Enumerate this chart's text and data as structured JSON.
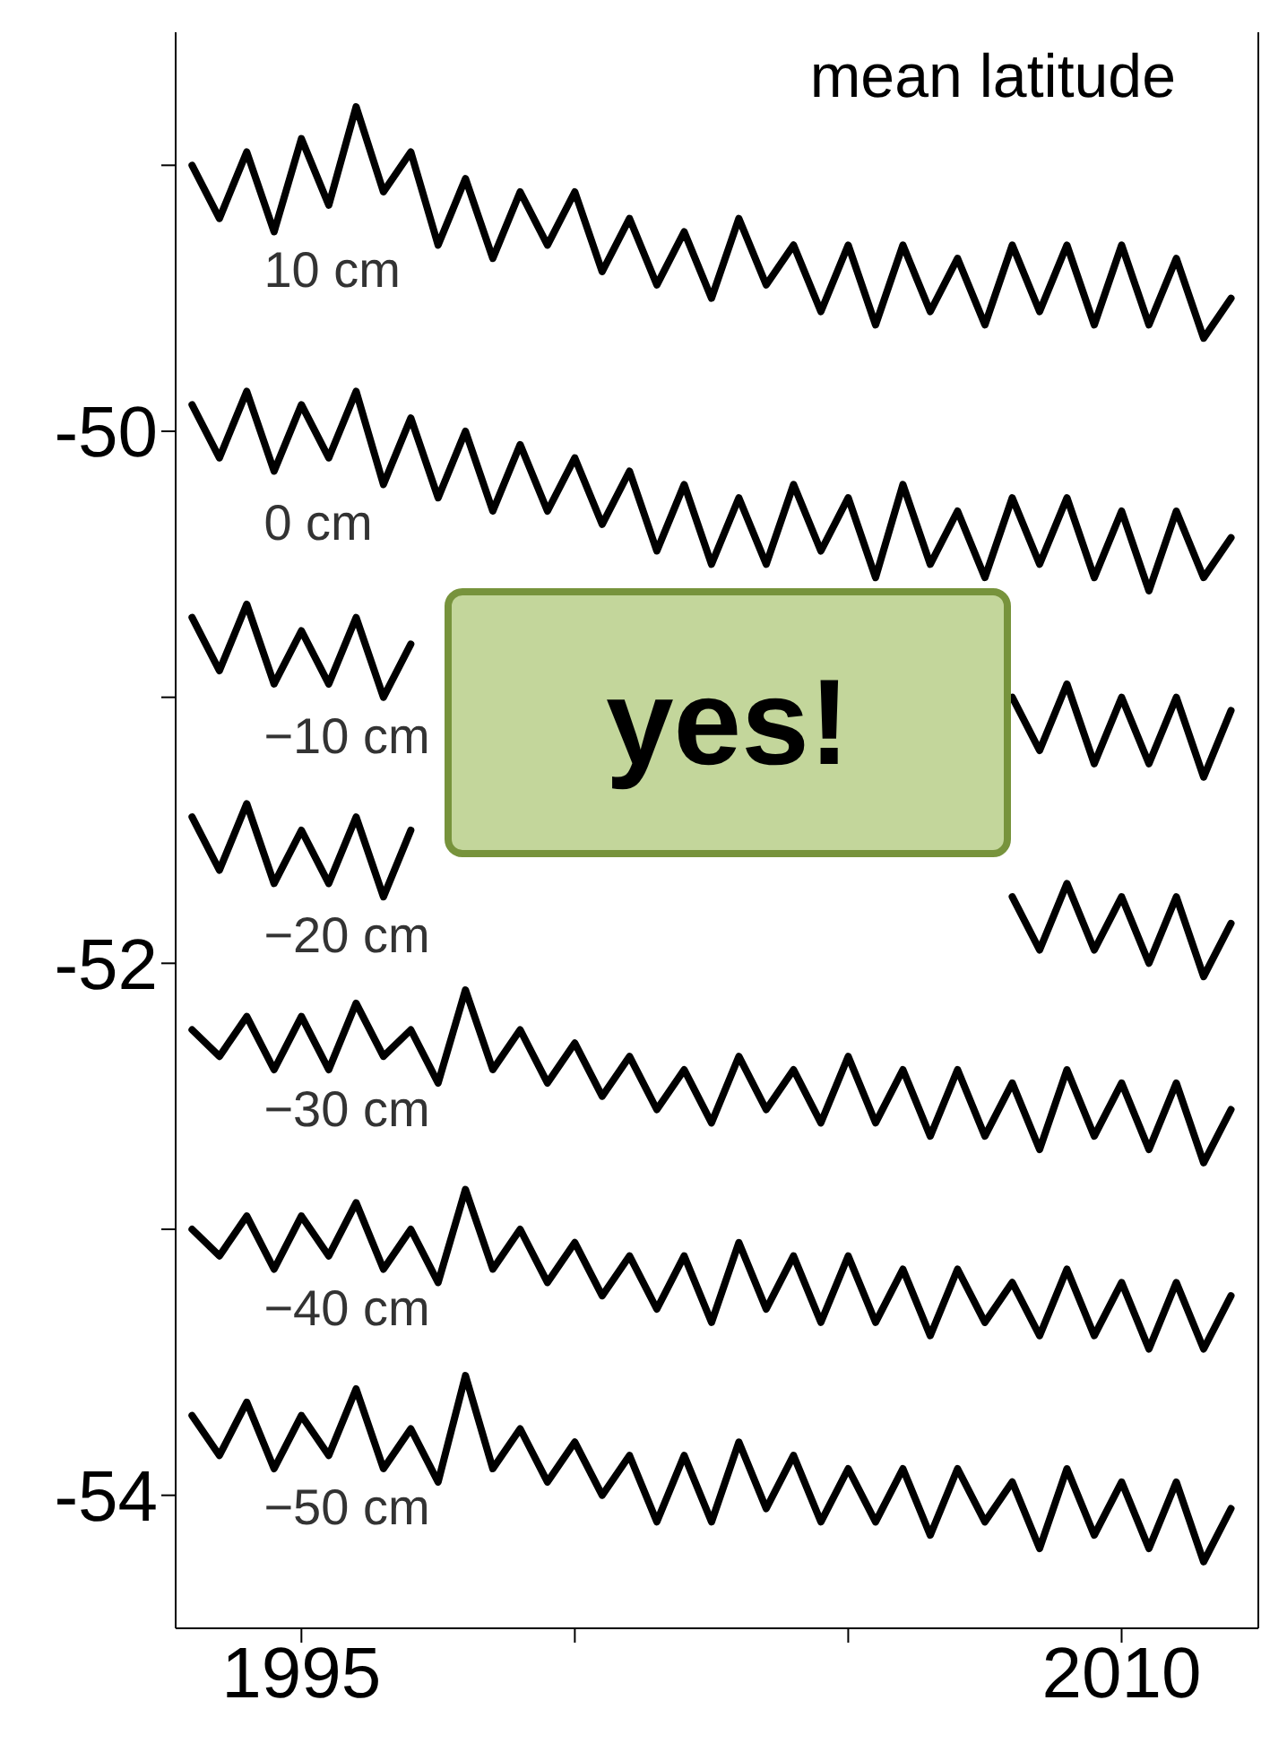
{
  "chart_data": {
    "type": "line",
    "title": "mean latitude",
    "annotations": [
      "yes!"
    ],
    "x": [
      1993,
      1993.5,
      1994,
      1994.5,
      1995,
      1995.5,
      1996,
      1996.5,
      1997,
      1997.5,
      1998,
      1998.5,
      1999,
      1999.5,
      2000,
      2000.5,
      2001,
      2001.5,
      2002,
      2002.5,
      2003,
      2003.5,
      2004,
      2004.5,
      2005,
      2005.5,
      2006,
      2006.5,
      2007,
      2007.5,
      2008,
      2008.5,
      2009,
      2009.5,
      2010,
      2010.5,
      2011,
      2011.5,
      2012
    ],
    "series": [
      {
        "name": "10 cm",
        "color": "#000000",
        "values": [
          -49.0,
          -49.2,
          -48.95,
          -49.25,
          -48.9,
          -49.15,
          -48.78,
          -49.1,
          -48.95,
          -49.3,
          -49.05,
          -49.35,
          -49.1,
          -49.3,
          -49.1,
          -49.4,
          -49.2,
          -49.45,
          -49.25,
          -49.5,
          -49.2,
          -49.45,
          -49.3,
          -49.55,
          -49.3,
          -49.6,
          -49.3,
          -49.55,
          -49.35,
          -49.6,
          -49.3,
          -49.55,
          -49.3,
          -49.6,
          -49.3,
          -49.6,
          -49.35,
          -49.65,
          -49.5
        ]
      },
      {
        "name": "0 cm",
        "color": "#000000",
        "values": [
          -49.9,
          -50.1,
          -49.85,
          -50.15,
          -49.9,
          -50.1,
          -49.85,
          -50.2,
          -49.95,
          -50.25,
          -50.0,
          -50.3,
          -50.05,
          -50.3,
          -50.1,
          -50.35,
          -50.15,
          -50.45,
          -50.2,
          -50.5,
          -50.25,
          -50.5,
          -50.2,
          -50.45,
          -50.25,
          -50.55,
          -50.2,
          -50.5,
          -50.3,
          -50.55,
          -50.25,
          -50.5,
          -50.25,
          -50.55,
          -50.3,
          -50.6,
          -50.3,
          -50.55,
          -50.4
        ]
      },
      {
        "name": "−10 cm",
        "color": "#000000",
        "values": [
          -50.7,
          -50.9,
          -50.65,
          -50.95,
          -50.75,
          -50.95,
          -50.7,
          -51.0,
          -50.8,
          null,
          null,
          null,
          null,
          null,
          null,
          null,
          null,
          null,
          null,
          null,
          null,
          null,
          null,
          null,
          null,
          null,
          null,
          null,
          null,
          null,
          -51.0,
          -51.2,
          -50.95,
          -51.25,
          -51.0,
          -51.25,
          -51.0,
          -51.3,
          -51.05
        ]
      },
      {
        "name": "−20 cm",
        "color": "#000000",
        "values": [
          -51.45,
          -51.65,
          -51.4,
          -51.7,
          -51.5,
          -51.7,
          -51.45,
          -51.75,
          -51.5,
          null,
          null,
          null,
          null,
          null,
          null,
          null,
          null,
          null,
          null,
          null,
          null,
          null,
          null,
          null,
          null,
          null,
          null,
          null,
          null,
          null,
          -51.75,
          -51.95,
          -51.7,
          -51.95,
          -51.75,
          -52.0,
          -51.75,
          -52.05,
          -51.85
        ]
      },
      {
        "name": "−30 cm",
        "color": "#000000",
        "values": [
          -52.25,
          -52.35,
          -52.2,
          -52.4,
          -52.2,
          -52.4,
          -52.15,
          -52.35,
          -52.25,
          -52.45,
          -52.1,
          -52.4,
          -52.25,
          -52.45,
          -52.3,
          -52.5,
          -52.35,
          -52.55,
          -52.4,
          -52.6,
          -52.35,
          -52.55,
          -52.4,
          -52.6,
          -52.35,
          -52.6,
          -52.4,
          -52.65,
          -52.4,
          -52.65,
          -52.45,
          -52.7,
          -52.4,
          -52.65,
          -52.45,
          -52.7,
          -52.45,
          -52.75,
          -52.55
        ]
      },
      {
        "name": "−40 cm",
        "color": "#000000",
        "values": [
          -53.0,
          -53.1,
          -52.95,
          -53.15,
          -52.95,
          -53.1,
          -52.9,
          -53.15,
          -53.0,
          -53.2,
          -52.85,
          -53.15,
          -53.0,
          -53.2,
          -53.05,
          -53.25,
          -53.1,
          -53.3,
          -53.1,
          -53.35,
          -53.05,
          -53.3,
          -53.1,
          -53.35,
          -53.1,
          -53.35,
          -53.15,
          -53.4,
          -53.15,
          -53.35,
          -53.2,
          -53.4,
          -53.15,
          -53.4,
          -53.2,
          -53.45,
          -53.2,
          -53.45,
          -53.25
        ]
      },
      {
        "name": "−50 cm",
        "color": "#000000",
        "values": [
          -53.7,
          -53.85,
          -53.65,
          -53.9,
          -53.7,
          -53.85,
          -53.6,
          -53.9,
          -53.75,
          -53.95,
          -53.55,
          -53.9,
          -53.75,
          -53.95,
          -53.8,
          -54.0,
          -53.85,
          -54.1,
          -53.85,
          -54.1,
          -53.8,
          -54.05,
          -53.85,
          -54.1,
          -53.9,
          -54.1,
          -53.9,
          -54.15,
          -53.9,
          -54.1,
          -53.95,
          -54.2,
          -53.9,
          -54.15,
          -53.95,
          -54.2,
          -53.95,
          -54.25,
          -54.05
        ]
      }
    ],
    "xlim": [
      1992.7,
      2012.5
    ],
    "xticks": [
      1995,
      {
        "value": 2000,
        "label": null
      },
      {
        "value": 2005,
        "label": null
      },
      2010
    ],
    "ylim": [
      -54.5,
      -48.5
    ],
    "yticks": [
      {
        "value": -49,
        "label": null
      },
      -50,
      {
        "value": -51,
        "label": null
      },
      -52,
      {
        "value": -53,
        "label": null
      },
      -54
    ],
    "grid": false,
    "legend": false,
    "line_style": "solid",
    "marker": "none"
  }
}
